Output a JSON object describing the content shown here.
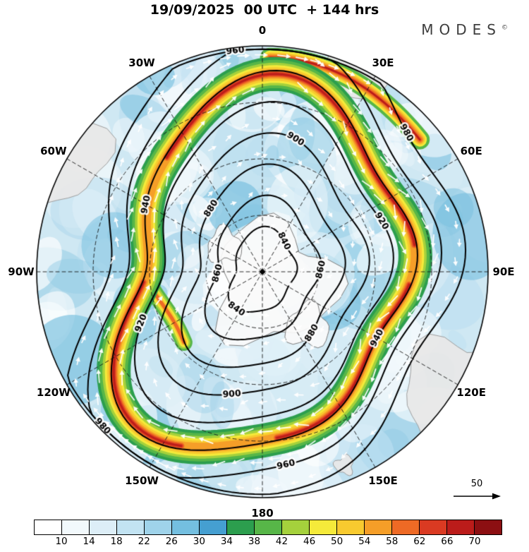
{
  "header": {
    "title": "19/09/2025  00 UTC  + 144 hrs",
    "logo": "MODES",
    "logo_mark": "©"
  },
  "chart_data": {
    "type": "heatmap",
    "title": "19/09/2025 00 UTC + 144 hrs",
    "projection": "polar stereographic, 0 at top, 180 at bottom, clockwise to east",
    "longitude_labels": [
      {
        "label": "0",
        "deg": 0
      },
      {
        "label": "30E",
        "deg": 30
      },
      {
        "label": "60E",
        "deg": 60
      },
      {
        "label": "90E",
        "deg": 90
      },
      {
        "label": "120E",
        "deg": 120
      },
      {
        "label": "150E",
        "deg": 150
      },
      {
        "label": "180",
        "deg": 180
      },
      {
        "label": "150W",
        "deg": 210
      },
      {
        "label": "120W",
        "deg": 240
      },
      {
        "label": "90W",
        "deg": 270
      },
      {
        "label": "60W",
        "deg": 300
      },
      {
        "label": "30W",
        "deg": 330
      }
    ],
    "contour_levels": [
      840,
      860,
      880,
      900,
      920,
      940,
      960,
      980
    ],
    "colorbar": {
      "ticks": [
        10,
        14,
        18,
        22,
        26,
        30,
        34,
        38,
        42,
        46,
        50,
        54,
        58,
        62,
        66,
        70
      ],
      "colors": [
        "#ffffff",
        "#f2f9fc",
        "#ddeef7",
        "#c2e3f2",
        "#9fd3ea",
        "#74bfe0",
        "#459fd1",
        "#2c9e4e",
        "#57b648",
        "#a5d13c",
        "#f5ea3a",
        "#f8ca2f",
        "#f59e28",
        "#ee6a25",
        "#da3a22",
        "#bb1c1a",
        "#8c0f12"
      ]
    },
    "wind_reference": {
      "label": "50"
    },
    "graticule_step_deg": 30,
    "vector_color": "#ffffff",
    "contour_color": "#000000",
    "ocean_base_color": "#cfe8f3"
  }
}
